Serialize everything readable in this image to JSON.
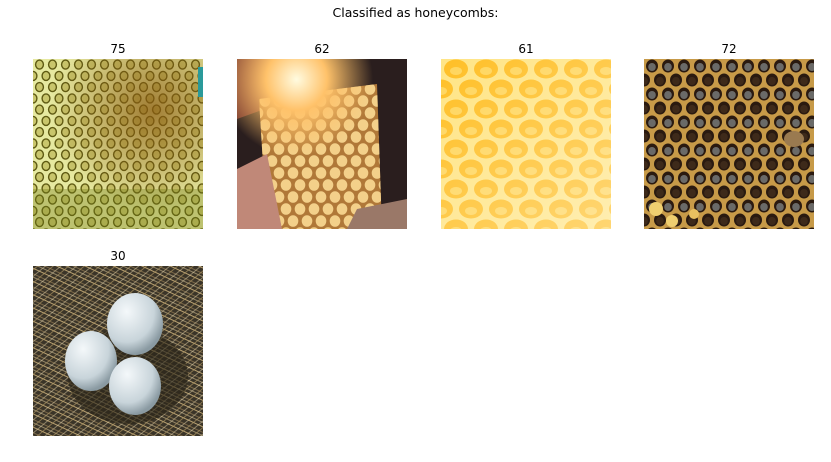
{
  "figure": {
    "title": "Classified as honeycombs:",
    "images": [
      {
        "label": "75",
        "subject": "pale-yellow-honeycomb-cells-icon"
      },
      {
        "label": "62",
        "subject": "backlit-honeycomb-held-in-hand-icon"
      },
      {
        "label": "61",
        "subject": "golden-honey-filled-comb-icon"
      },
      {
        "label": "72",
        "subject": "dark-brood-comb-with-capped-cells-icon"
      },
      {
        "label": "30",
        "subject": "three-white-eggs-in-straw-nest-icon"
      }
    ]
  }
}
